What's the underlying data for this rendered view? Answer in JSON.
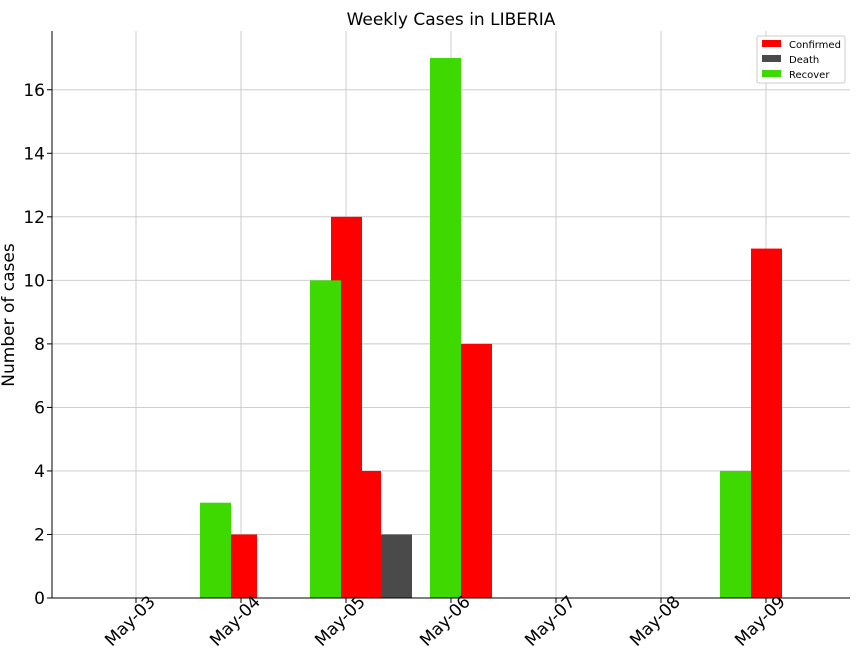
{
  "chart_data": {
    "type": "bar",
    "title": "Weekly Cases in LIBERIA",
    "ylabel": "Number of cases",
    "xlabel": "",
    "categories": [
      "May-03",
      "May-04",
      "May-05",
      "May-06",
      "May-07",
      "May-08",
      "May-09"
    ],
    "ylim": [
      0,
      17.85
    ],
    "yticks": [
      0,
      2,
      4,
      6,
      8,
      10,
      12,
      14,
      16
    ],
    "grid": true,
    "legend_position": "top-right",
    "series": [
      {
        "name": "Confirmed",
        "color": "#ff0000",
        "values": [
          0,
          2,
          12,
          4,
          8,
          0,
          11
        ]
      },
      {
        "name": "Death",
        "color": "#4a4a4a",
        "values": [
          0,
          0,
          0,
          2,
          0,
          0,
          0
        ]
      },
      {
        "name": "Recover",
        "color": "#3dd900",
        "values": [
          0,
          3,
          10,
          0,
          17,
          0,
          4
        ]
      }
    ]
  }
}
